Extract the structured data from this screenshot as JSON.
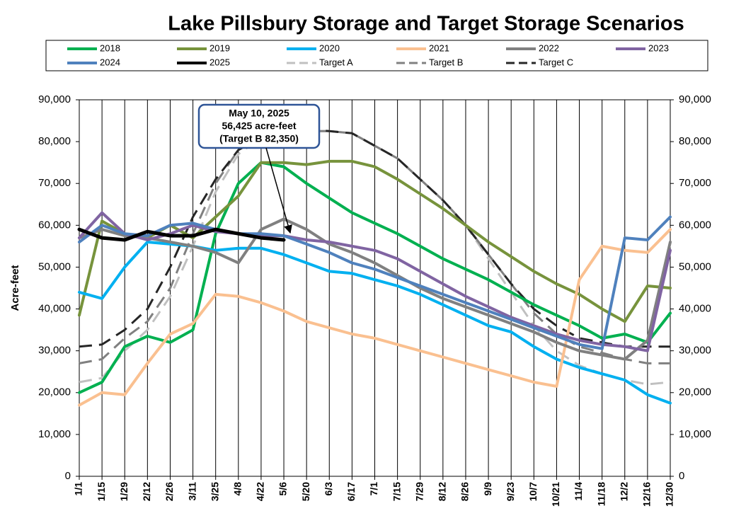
{
  "chart_data": {
    "type": "line",
    "title": "Lake Pillsbury Storage and Target Storage Scenarios",
    "ylabel": "Acre-feet",
    "annotation": [
      "May 10, 2025",
      "56,425 acre-feet",
      "(Target B 82,350)"
    ],
    "categories": [
      "1/1",
      "1/15",
      "1/29",
      "2/12",
      "2/26",
      "3/11",
      "3/25",
      "4/8",
      "4/22",
      "5/6",
      "5/20",
      "6/3",
      "6/17",
      "7/1",
      "7/15",
      "7/29",
      "8/12",
      "8/26",
      "9/9",
      "9/23",
      "10/7",
      "10/21",
      "11/4",
      "11/18",
      "12/2",
      "12/16",
      "12/30"
    ],
    "ylim": [
      0,
      90000
    ],
    "yticks": [
      0,
      {
        "value": 10000,
        "label": "10,000"
      },
      {
        "value": 20000,
        "label": "20,000"
      },
      {
        "value": 30000,
        "label": "30,000"
      },
      {
        "value": 40000,
        "label": "40,000"
      },
      {
        "value": 50000,
        "label": "50,000"
      },
      {
        "value": 60000,
        "label": "60,000"
      },
      {
        "value": 70000,
        "label": "70,000"
      },
      {
        "value": 80000,
        "label": "80,000"
      },
      {
        "value": 90000,
        "label": "90,000"
      }
    ],
    "y2lim": [
      0,
      90000
    ],
    "grid": true,
    "series": [
      {
        "name": "2018",
        "color": "#00b050",
        "dash": false,
        "values": [
          20000,
          22500,
          31000,
          33500,
          32000,
          35000,
          58000,
          70000,
          75000,
          74000,
          70000,
          66500,
          63000,
          60500,
          58000,
          55000,
          52000,
          49500,
          47000,
          44000,
          41000,
          38500,
          36000,
          33000,
          34000,
          32000,
          39000
        ]
      },
      {
        "name": "2019",
        "color": "#77933c",
        "dash": false,
        "values": [
          38500,
          61000,
          58000,
          57000,
          60000,
          57000,
          62000,
          67000,
          75000,
          75000,
          74500,
          75300,
          75300,
          74000,
          71000,
          67500,
          64000,
          60000,
          56000,
          52500,
          49000,
          46000,
          43500,
          40000,
          37000,
          45500,
          45000
        ]
      },
      {
        "name": "2020",
        "color": "#00b0f0",
        "dash": false,
        "values": [
          44000,
          42500,
          50000,
          56000,
          55500,
          55000,
          54000,
          54500,
          54500,
          53000,
          51000,
          49000,
          48500,
          47000,
          45500,
          43500,
          41000,
          38500,
          36000,
          34500,
          31000,
          28000,
          26000,
          24500,
          23000,
          19500,
          17500
        ]
      },
      {
        "name": "2021",
        "color": "#fac090",
        "dash": false,
        "values": [
          17000,
          20000,
          19500,
          27000,
          34000,
          36500,
          43500,
          43000,
          41500,
          39500,
          37000,
          35500,
          34000,
          33000,
          31500,
          30000,
          28500,
          27000,
          25500,
          24000,
          22500,
          21500,
          47000,
          55000,
          54000,
          53500,
          59000
        ]
      },
      {
        "name": "2022",
        "color": "#808080",
        "dash": false,
        "values": [
          57000,
          59000,
          57500,
          57000,
          56000,
          55000,
          53500,
          51000,
          59000,
          61500,
          59000,
          55500,
          53500,
          51000,
          48000,
          45000,
          42500,
          40500,
          38500,
          36500,
          34500,
          32000,
          30000,
          29000,
          28000,
          32500,
          56000
        ]
      },
      {
        "name": "2023",
        "color": "#8064a2",
        "dash": false,
        "values": [
          57000,
          63000,
          58000,
          56500,
          58000,
          60000,
          58500,
          58000,
          57500,
          57500,
          56500,
          56000,
          55000,
          54000,
          52000,
          49000,
          46000,
          43000,
          40500,
          38000,
          36000,
          34000,
          32500,
          31500,
          31000,
          30000,
          54000
        ]
      },
      {
        "name": "2024",
        "color": "#4f81bd",
        "dash": false,
        "values": [
          56000,
          60000,
          58000,
          57500,
          60000,
          60500,
          59000,
          58000,
          58000,
          57500,
          55500,
          53500,
          51000,
          49500,
          47500,
          45500,
          43500,
          41500,
          39500,
          37500,
          35500,
          33500,
          31500,
          30500,
          57000,
          56500,
          62000
        ]
      },
      {
        "name": "2025",
        "color": "#000000",
        "dash": false,
        "values": [
          59000,
          57000,
          56500,
          58500,
          57500,
          57500,
          59000,
          58000,
          57000,
          56500,
          null,
          null,
          null,
          null,
          null,
          null,
          null,
          null,
          null,
          null,
          null,
          null,
          null,
          null,
          null,
          null,
          null
        ]
      },
      {
        "name": "Target A",
        "color": "#c0c0c0",
        "dash": true,
        "values": [
          22500,
          23500,
          30000,
          35000,
          43000,
          55000,
          68000,
          77000,
          81000,
          83000,
          82500,
          82500,
          82000,
          79000,
          76000,
          71000,
          66000,
          60000,
          52000,
          44000,
          36000,
          30000,
          26500,
          24500,
          23000,
          22000,
          22500
        ]
      },
      {
        "name": "Target B",
        "color": "#808080",
        "dash": true,
        "values": [
          27000,
          28000,
          33000,
          37000,
          45000,
          58000,
          70000,
          78000,
          81000,
          83000,
          82500,
          82500,
          82000,
          79000,
          76000,
          71000,
          66000,
          60000,
          53000,
          46000,
          39000,
          34000,
          31000,
          29500,
          28000,
          27000,
          27000
        ]
      },
      {
        "name": "Target C",
        "color": "#262626",
        "dash": true,
        "values": [
          31000,
          31500,
          35000,
          40000,
          50000,
          62000,
          71000,
          78000,
          81000,
          83000,
          83000,
          82500,
          82000,
          79000,
          76000,
          71000,
          66000,
          60000,
          53000,
          46000,
          40000,
          36000,
          33000,
          32000,
          31000,
          31000,
          31000
        ]
      }
    ]
  }
}
